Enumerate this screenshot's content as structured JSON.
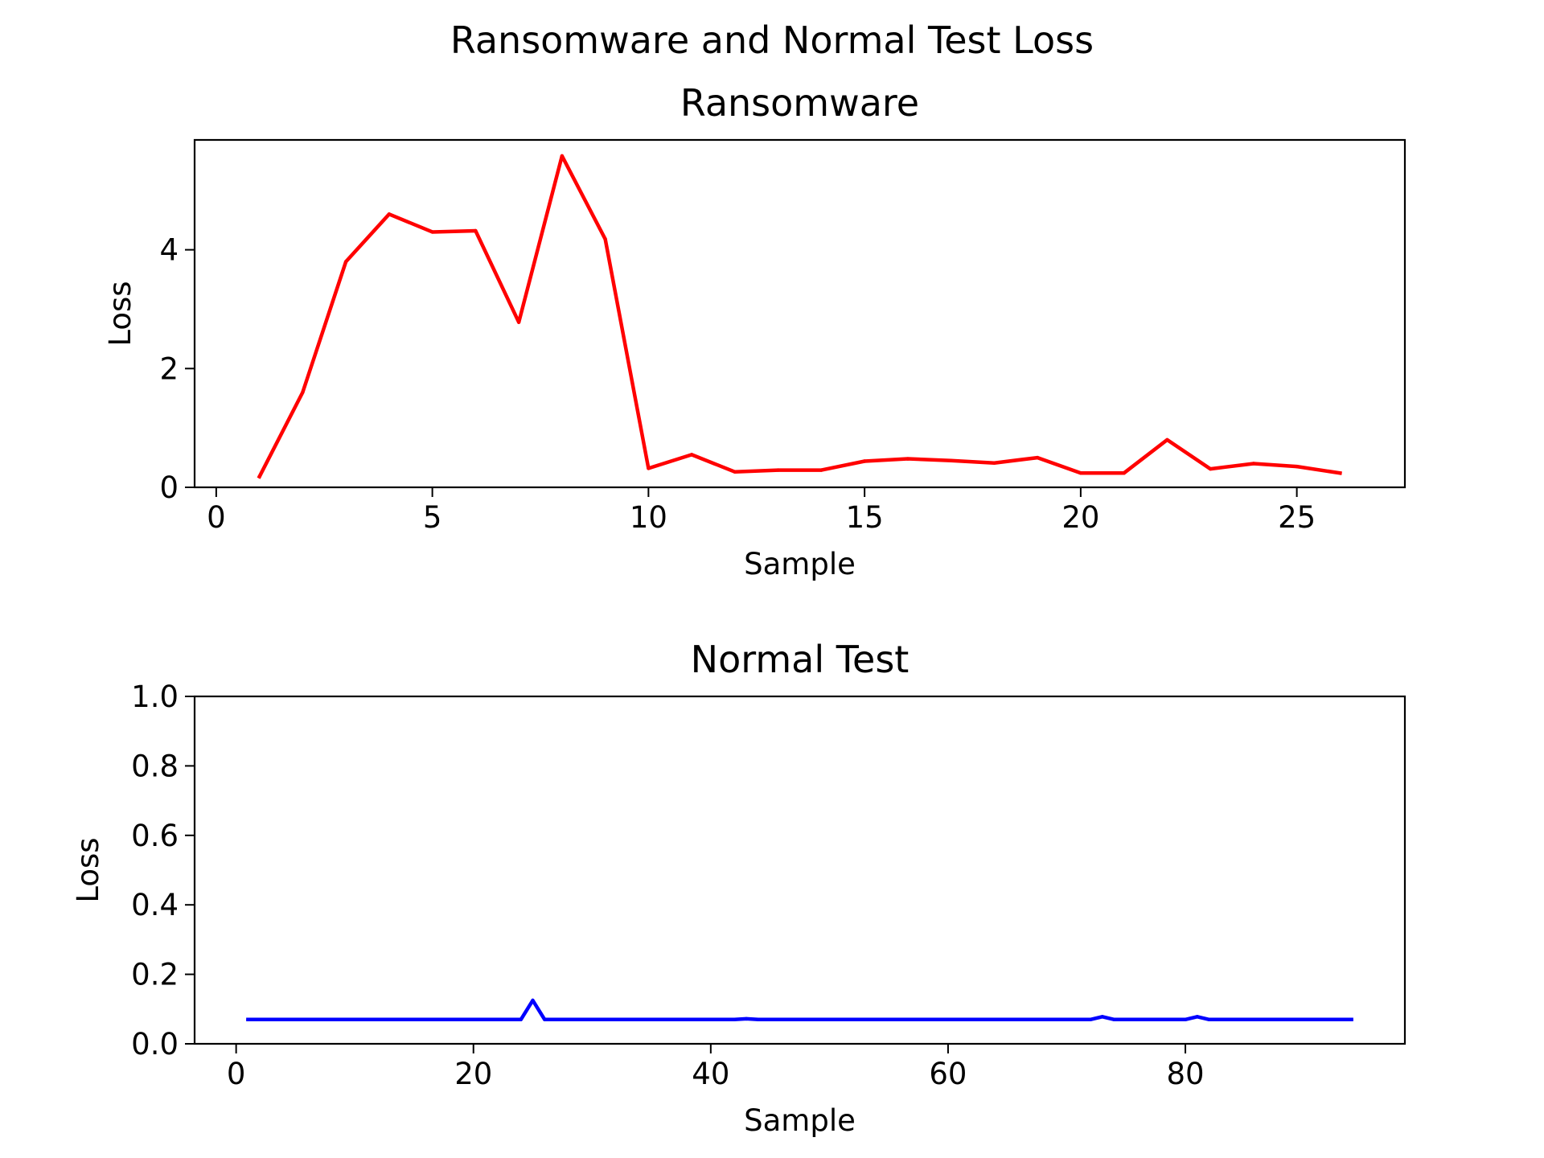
{
  "figure": {
    "suptitle": "Ransomware and Normal Test Loss"
  },
  "chart_data": [
    {
      "type": "line",
      "title": "Ransomware",
      "xlabel": "Sample",
      "ylabel": "Loss",
      "xlim": [
        -0.5,
        27.5
      ],
      "ylim": [
        0,
        5.85
      ],
      "xticks": [
        0,
        5,
        10,
        15,
        20,
        25
      ],
      "yticks": [
        0,
        2,
        4
      ],
      "grid": false,
      "legend": "none",
      "series": [
        {
          "color": "#ff0000",
          "x": [
            1,
            2,
            3,
            4,
            5,
            6,
            7,
            8,
            9,
            10,
            11,
            12,
            13,
            14,
            15,
            16,
            17,
            18,
            19,
            20,
            21,
            22,
            23,
            24,
            25,
            26
          ],
          "y": [
            0.18,
            1.6,
            3.8,
            4.6,
            4.3,
            4.32,
            2.78,
            5.58,
            4.18,
            0.32,
            0.55,
            0.26,
            0.29,
            0.29,
            0.44,
            0.48,
            0.45,
            0.41,
            0.5,
            0.24,
            0.24,
            0.8,
            0.31,
            0.4,
            0.35,
            0.24
          ]
        }
      ]
    },
    {
      "type": "line",
      "title": "Normal Test",
      "xlabel": "Sample",
      "ylabel": "Loss",
      "xlim": [
        -3.5,
        98.5
      ],
      "ylim": [
        0.0,
        1.0
      ],
      "xticks": [
        0,
        20,
        40,
        60,
        80
      ],
      "yticks": [
        0.0,
        0.2,
        0.4,
        0.6,
        0.8,
        1.0
      ],
      "grid": false,
      "legend": "none",
      "series": [
        {
          "color": "#0000ff",
          "x": [
            1,
            24,
            25,
            26,
            42,
            43,
            44,
            72,
            73,
            74,
            80,
            81,
            82,
            94
          ],
          "y": [
            0.07,
            0.07,
            0.125,
            0.07,
            0.07,
            0.072,
            0.07,
            0.07,
            0.078,
            0.07,
            0.07,
            0.078,
            0.07,
            0.07
          ]
        }
      ]
    }
  ]
}
